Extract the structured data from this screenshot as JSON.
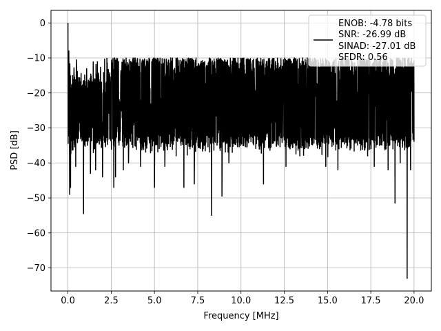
{
  "chart_data": {
    "type": "line",
    "title": "",
    "xlabel": "Frequency [MHz]",
    "ylabel": "PSD [dB]",
    "xlim": [
      -0.98,
      21.0
    ],
    "ylim": [
      -76.6,
      3.6
    ],
    "xticks": [
      0.0,
      2.5,
      5.0,
      7.5,
      10.0,
      12.5,
      15.0,
      17.5,
      20.0
    ],
    "xtick_labels": [
      "0.0",
      "2.5",
      "5.0",
      "7.5",
      "10.0",
      "12.5",
      "15.0",
      "17.5",
      "20.0"
    ],
    "yticks": [
      0,
      -10,
      -20,
      -30,
      -40,
      -50,
      -60,
      -70
    ],
    "ytick_labels": [
      "0",
      "−10",
      "−20",
      "−30",
      "−40",
      "−50",
      "−60",
      "−70"
    ],
    "grid": true,
    "legend": {
      "position": "top-right",
      "entries": [
        "ENOB: -4.78 bits",
        "SNR: -26.99 dB",
        "SINAD: -27.01 dB",
        "SFDR: 0.56"
      ]
    },
    "series": [
      {
        "color": "#000000",
        "x_range": [
          0.0,
          20.0
        ],
        "points": 2000,
        "noise_floor_upper_db": -10,
        "noise_floor_lower_db": -33,
        "peaks": [
          {
            "x": 0.0,
            "y": 0
          },
          {
            "x": 0.05,
            "y": -8
          },
          {
            "x": 0.12,
            "y": -18
          }
        ],
        "dips": [
          {
            "x": 0.1,
            "y": -49
          },
          {
            "x": 0.15,
            "y": -47
          },
          {
            "x": 0.45,
            "y": -41
          },
          {
            "x": 0.9,
            "y": -54.5
          },
          {
            "x": 1.3,
            "y": -43
          },
          {
            "x": 1.6,
            "y": -42
          },
          {
            "x": 2.0,
            "y": -44
          },
          {
            "x": 2.65,
            "y": -47
          },
          {
            "x": 2.75,
            "y": -44
          },
          {
            "x": 3.2,
            "y": -42
          },
          {
            "x": 3.5,
            "y": -40
          },
          {
            "x": 4.2,
            "y": -41
          },
          {
            "x": 5.0,
            "y": -47
          },
          {
            "x": 5.6,
            "y": -41
          },
          {
            "x": 6.7,
            "y": -47
          },
          {
            "x": 7.3,
            "y": -46
          },
          {
            "x": 8.3,
            "y": -55
          },
          {
            "x": 8.9,
            "y": -49.5
          },
          {
            "x": 9.3,
            "y": -40
          },
          {
            "x": 11.3,
            "y": -46
          },
          {
            "x": 12.6,
            "y": -41
          },
          {
            "x": 13.4,
            "y": -38
          },
          {
            "x": 14.9,
            "y": -41
          },
          {
            "x": 15.6,
            "y": -42
          },
          {
            "x": 17.7,
            "y": -41
          },
          {
            "x": 18.5,
            "y": -42
          },
          {
            "x": 18.9,
            "y": -51.5
          },
          {
            "x": 19.2,
            "y": -40
          },
          {
            "x": 19.6,
            "y": -73
          },
          {
            "x": 19.8,
            "y": -42
          }
        ]
      }
    ]
  }
}
